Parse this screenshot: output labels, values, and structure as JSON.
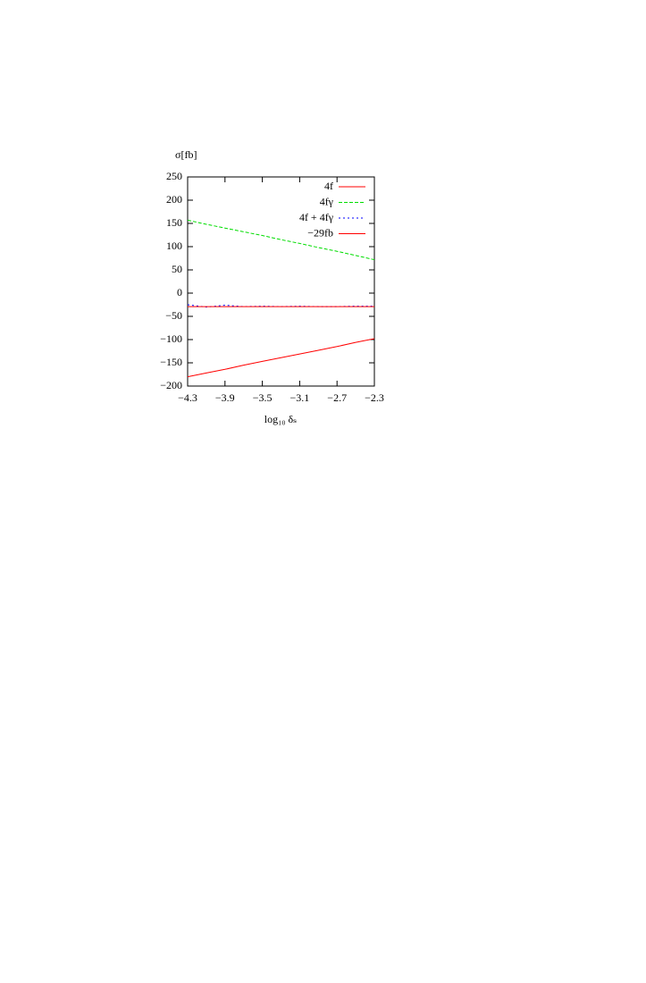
{
  "chart_data": {
    "type": "line",
    "y_label": "σ[fb]",
    "x_label": "log₁₀ δₛ",
    "x": [
      -4.3,
      -4.1,
      -3.9,
      -3.7,
      -3.5,
      -3.3,
      -3.1,
      -2.9,
      -2.7,
      -2.5,
      -2.3
    ],
    "series": [
      {
        "name": "4f",
        "color": "#ff0000",
        "dash": "none",
        "values": [
          -180,
          -172,
          -164,
          -155,
          -147,
          -139,
          -131,
          -123,
          -115,
          -106,
          -98
        ]
      },
      {
        "name": "4fγ",
        "color": "#00dd00",
        "dash": "4 2",
        "values": [
          157,
          148,
          140,
          132,
          124,
          115,
          107,
          98,
          90,
          81,
          72
        ]
      },
      {
        "name": "4f + 4fγ",
        "color": "#0000ff",
        "dash": "2 3",
        "values": [
          -25,
          -30,
          -26,
          -29,
          -28,
          -29,
          -28,
          -29,
          -29,
          -28,
          -28
        ]
      },
      {
        "name": "−29fb",
        "color": "#ff0000",
        "dash": "none",
        "values": [
          -29,
          -29,
          -29,
          -29,
          -29,
          -29,
          -29,
          -29,
          -29,
          -29,
          -29
        ]
      }
    ],
    "xlim": [
      -4.3,
      -2.3
    ],
    "xticks": [
      {
        "value": -4.3,
        "label": "−4.3"
      },
      {
        "value": -3.9,
        "label": "−3.9"
      },
      {
        "value": -3.5,
        "label": "−3.5"
      },
      {
        "value": -3.1,
        "label": "−3.1"
      },
      {
        "value": -2.7,
        "label": "−2.7"
      },
      {
        "value": -2.3,
        "label": "−2.3"
      }
    ],
    "ylim": [
      -200,
      250
    ],
    "yticks": [
      {
        "value": -200,
        "label": "−200"
      },
      {
        "value": -150,
        "label": "−150"
      },
      {
        "value": -100,
        "label": "−100"
      },
      {
        "value": -50,
        "label": "−50"
      },
      0,
      50,
      100,
      150,
      200,
      250
    ],
    "legend": "top-right"
  }
}
